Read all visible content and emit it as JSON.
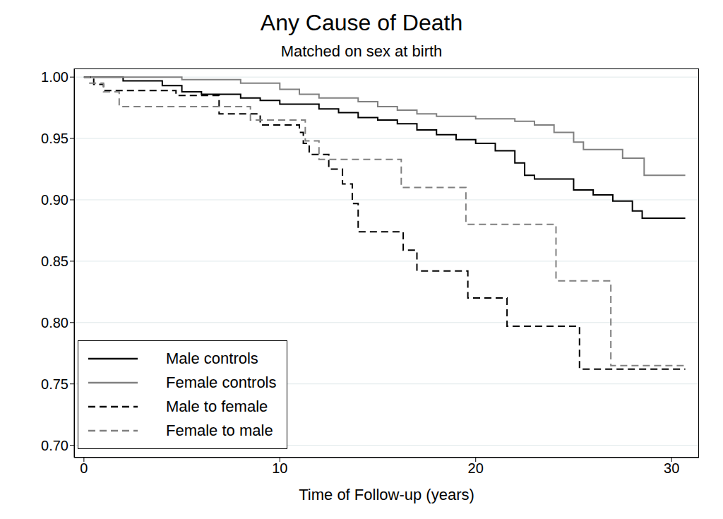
{
  "chart_data": {
    "type": "line",
    "title": "Any Cause of Death",
    "subtitle": "Matched on sex at birth",
    "x_label": "Time of Follow-up (years)",
    "xlim": [
      -0.5,
      31.4
    ],
    "xticks": [
      0,
      10,
      20,
      30
    ],
    "ylim": [
      0.69,
      1.007
    ],
    "yticks": [
      {
        "value": 0.7,
        "label": "0.70"
      },
      0.75,
      {
        "value": 0.8,
        "label": "0.80"
      },
      0.85,
      {
        "value": 0.9,
        "label": "0.90"
      },
      0.95,
      {
        "value": 1.0,
        "label": "1.00"
      }
    ],
    "grid": true,
    "legend": "lower left",
    "series": [
      {
        "name": "Male controls",
        "color": "#000000",
        "line_style": "solid",
        "x": [
          0,
          2,
          4,
          5,
          6,
          8,
          9,
          10,
          12,
          13,
          14,
          15,
          16,
          17,
          18,
          19,
          20,
          21,
          22,
          22.5,
          23,
          25,
          26,
          27,
          28,
          28.5,
          30.7
        ],
        "values": [
          1.0,
          0.997,
          0.993,
          0.988,
          0.986,
          0.983,
          0.981,
          0.978,
          0.974,
          0.971,
          0.967,
          0.965,
          0.962,
          0.957,
          0.953,
          0.949,
          0.946,
          0.94,
          0.93,
          0.92,
          0.917,
          0.908,
          0.904,
          0.899,
          0.891,
          0.885,
          0.885
        ]
      },
      {
        "name": "Female controls",
        "color": "#808080",
        "line_style": "solid",
        "x": [
          0,
          5,
          8,
          10,
          11,
          12,
          14,
          15,
          16,
          17,
          18,
          20,
          22,
          23,
          24,
          25,
          25.5,
          27.5,
          28.6,
          30.7
        ],
        "values": [
          1.0,
          0.998,
          0.995,
          0.99,
          0.986,
          0.983,
          0.98,
          0.976,
          0.973,
          0.97,
          0.968,
          0.966,
          0.964,
          0.961,
          0.955,
          0.947,
          0.941,
          0.934,
          0.92,
          0.92
        ]
      },
      {
        "name": "Male to female",
        "color": "#000000",
        "line_style": "dashed",
        "x": [
          0,
          0.5,
          1,
          4.7,
          6.9,
          9,
          11,
          11.2,
          11.5,
          12.5,
          13.2,
          13.7,
          14,
          16.3,
          17,
          19.6,
          21.6,
          25.3,
          30.7
        ],
        "values": [
          1.0,
          0.994,
          0.989,
          0.985,
          0.97,
          0.961,
          0.955,
          0.946,
          0.937,
          0.925,
          0.913,
          0.897,
          0.874,
          0.859,
          0.842,
          0.82,
          0.797,
          0.762,
          0.762
        ]
      },
      {
        "name": "Female to male",
        "color": "#808080",
        "line_style": "dashed",
        "x": [
          0,
          0.3,
          1,
          1.8,
          8.5,
          11.3,
          12,
          16.2,
          19.5,
          24.1,
          26.9,
          30.7
        ],
        "values": [
          1.0,
          0.995,
          0.988,
          0.976,
          0.965,
          0.948,
          0.933,
          0.91,
          0.88,
          0.834,
          0.765,
          0.765
        ]
      }
    ]
  }
}
